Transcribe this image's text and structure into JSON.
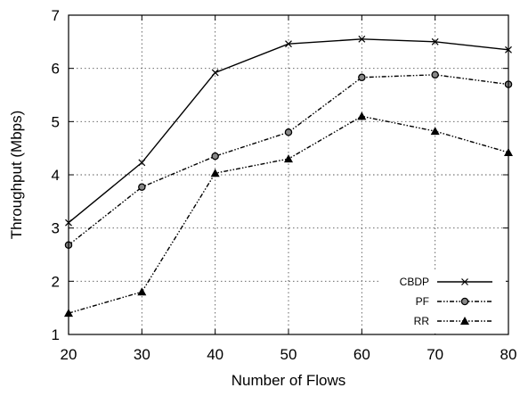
{
  "chart_data": {
    "type": "line",
    "title": "",
    "xlabel": "Number of Flows",
    "ylabel": "Throughput (Mbps)",
    "x": [
      20,
      30,
      40,
      50,
      60,
      70,
      80
    ],
    "xlim": [
      20,
      80
    ],
    "ylim": [
      1,
      7
    ],
    "xticks": [
      "20",
      "30",
      "40",
      "50",
      "60",
      "70",
      "80"
    ],
    "yticks": [
      "1",
      "2",
      "3",
      "4",
      "5",
      "6",
      "7"
    ],
    "grid": true,
    "legend_position": "bottom-right",
    "series": [
      {
        "name": "CBDP",
        "values": [
          3.1,
          4.23,
          5.92,
          6.46,
          6.55,
          6.5,
          6.35
        ],
        "marker": "x",
        "linestyle": "solid",
        "color": "#000000"
      },
      {
        "name": "PF",
        "values": [
          2.68,
          3.77,
          4.35,
          4.8,
          5.83,
          5.88,
          5.7
        ],
        "marker": "circle",
        "linestyle": "dash-dot-dot",
        "color": "#000000"
      },
      {
        "name": "RR",
        "values": [
          1.4,
          1.8,
          4.03,
          4.3,
          5.1,
          4.82,
          4.42
        ],
        "marker": "triangle",
        "linestyle": "dash-dot-dot",
        "color": "#000000"
      }
    ]
  }
}
